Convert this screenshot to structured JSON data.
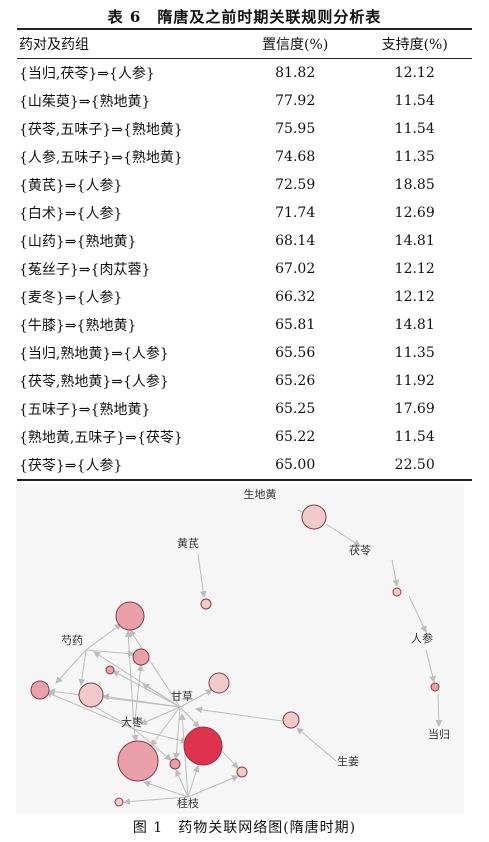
{
  "table": {
    "title": "表 6　隋唐及之前时期关联规则分析表",
    "headers": [
      "药对及药组",
      "置信度(%)",
      "支持度(%)"
    ],
    "rows": [
      [
        "{当归,茯苓}⇒{人参}",
        "81.82",
        "12.12"
      ],
      [
        "{山茱萸}⇒{熟地黄}",
        "77.92",
        "11.54"
      ],
      [
        "{茯苓,五味子}⇒{熟地黄}",
        "75.95",
        "11.54"
      ],
      [
        "{人参,五味子}⇒{熟地黄}",
        "74.68",
        "11.35"
      ],
      [
        "{黄芪}⇒{人参}",
        "72.59",
        "18.85"
      ],
      [
        "{白术}⇒{人参}",
        "71.74",
        "12.69"
      ],
      [
        "{山药}⇒{熟地黄}",
        "68.14",
        "14.81"
      ],
      [
        "{菟丝子}⇒{肉苁蓉}",
        "67.02",
        "12.12"
      ],
      [
        "{麦冬}⇒{人参}",
        "66.32",
        "12.12"
      ],
      [
        "{牛膝}⇒{熟地黄}",
        "65.81",
        "14.81"
      ],
      [
        "{当归,熟地黄}⇒{人参}",
        "65.56",
        "11.35"
      ],
      [
        "{茯苓,熟地黄}⇒{人参}",
        "65.26",
        "11.92"
      ],
      [
        "{五味子}⇒{熟地黄}",
        "65.25",
        "17.69"
      ],
      [
        "{熟地黄,五味子}⇒{茯苓}",
        "65.22",
        "11.54"
      ],
      [
        "{茯苓}⇒{人参}",
        "65.00",
        "22.50"
      ]
    ]
  },
  "figure": {
    "caption": "图 1　药物关联网络图(隋唐时期)",
    "node_labels": {
      "shengdihuang": "生地黄",
      "huangqi": "黄芪",
      "fuling": "茯苓",
      "renshen": "人参",
      "shaoyao": "芍药",
      "gancao": "甘草",
      "dazao": "大枣",
      "danggui": "当归",
      "shengjiang": "生姜",
      "guizhi": "桂枝"
    },
    "colors": {
      "node_light": "#f2c9cc",
      "node_mid": "#e9a0a8",
      "node_strong": "#e0324f",
      "edge": "#bdbdbd"
    }
  }
}
